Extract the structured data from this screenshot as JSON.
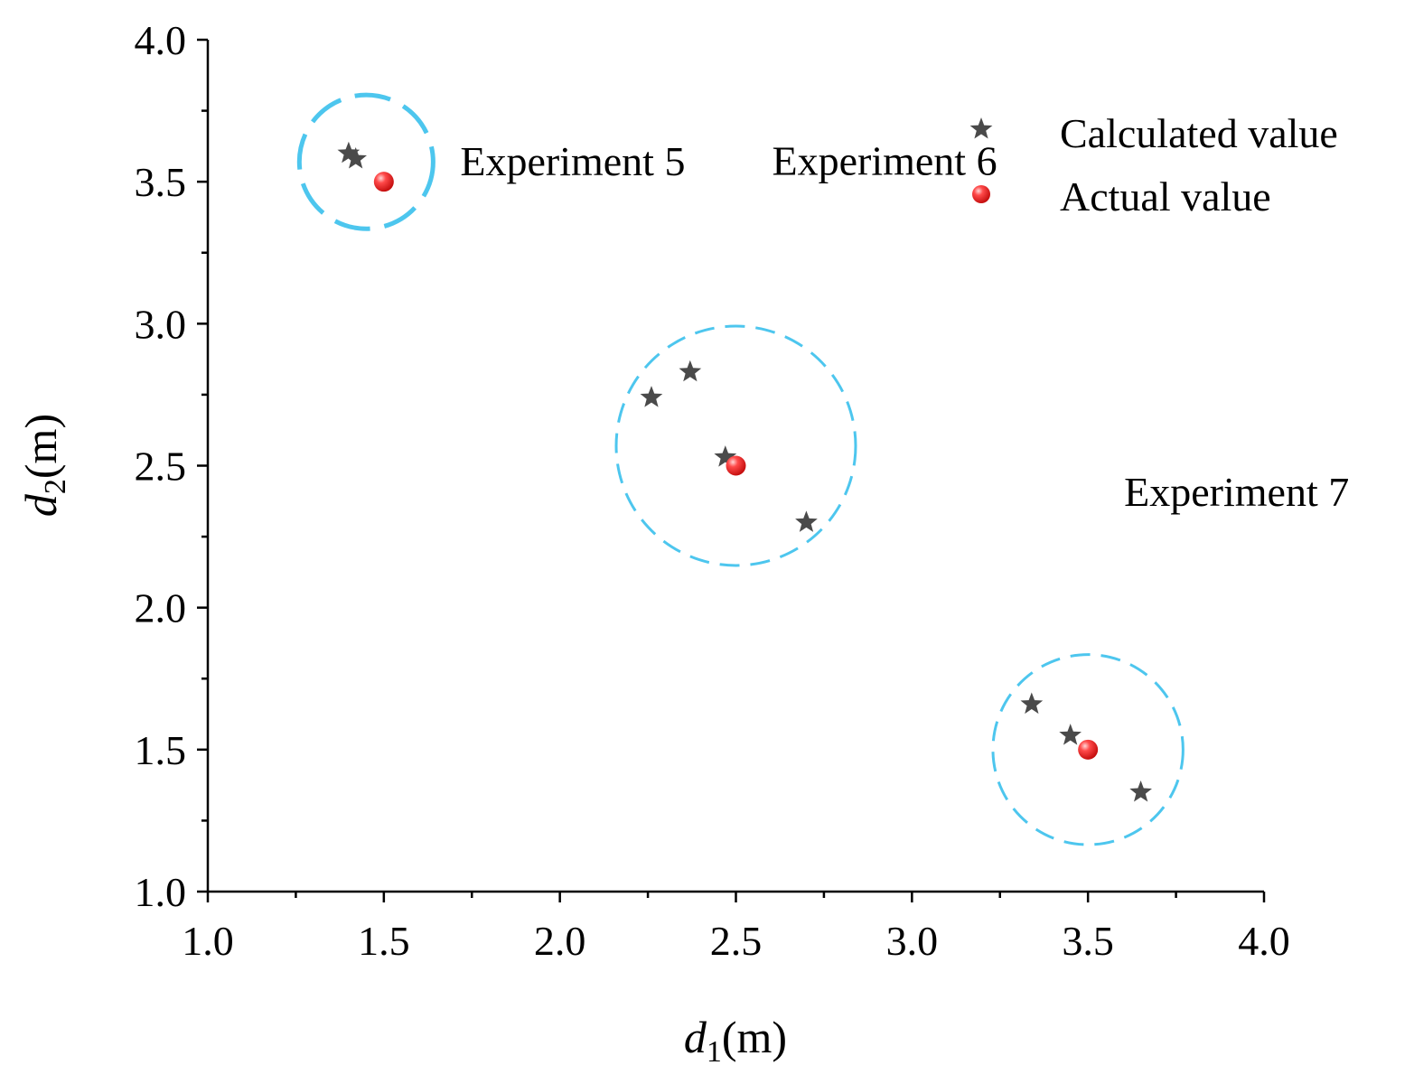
{
  "chart_data": {
    "type": "scatter",
    "xlabel": {
      "var": "d",
      "sub": "1",
      "unit": "(m)"
    },
    "ylabel": {
      "var": "d",
      "sub": "2",
      "unit": "(m)"
    },
    "xlim": [
      1.0,
      4.0
    ],
    "ylim": [
      1.0,
      4.0
    ],
    "xticks": [
      "1.0",
      "1.5",
      "2.0",
      "2.5",
      "3.0",
      "3.5",
      "4.0"
    ],
    "yticks": [
      "1.0",
      "1.5",
      "2.0",
      "2.5",
      "3.0",
      "3.5",
      "4.0"
    ],
    "legend": {
      "position": "top-right",
      "entries": [
        {
          "label": "Calculated value",
          "marker": "star",
          "color": "#4a4a4a"
        },
        {
          "label": "Actual value",
          "marker": "sphere",
          "color": "#ee2222"
        }
      ]
    },
    "series": [
      {
        "name": "Calculated value",
        "points": [
          {
            "x": 1.4,
            "y": 3.6
          },
          {
            "x": 1.42,
            "y": 3.58
          },
          {
            "x": 2.26,
            "y": 2.74
          },
          {
            "x": 2.37,
            "y": 2.83
          },
          {
            "x": 2.47,
            "y": 2.53
          },
          {
            "x": 2.7,
            "y": 2.3
          },
          {
            "x": 3.34,
            "y": 1.66
          },
          {
            "x": 3.45,
            "y": 1.55
          },
          {
            "x": 3.65,
            "y": 1.35
          }
        ]
      },
      {
        "name": "Actual value",
        "points": [
          {
            "x": 1.5,
            "y": 3.5
          },
          {
            "x": 2.5,
            "y": 2.5
          },
          {
            "x": 3.5,
            "y": 1.5
          }
        ]
      }
    ],
    "clusters": [
      {
        "label": "Experiment 5",
        "cx": 1.45,
        "cy": 3.57,
        "r": 0.19
      },
      {
        "label": "Experiment 6",
        "cx": 2.5,
        "cy": 2.57,
        "r": 0.34
      },
      {
        "label": "Experiment 7",
        "cx": 3.5,
        "cy": 1.5,
        "r": 0.27
      }
    ]
  }
}
